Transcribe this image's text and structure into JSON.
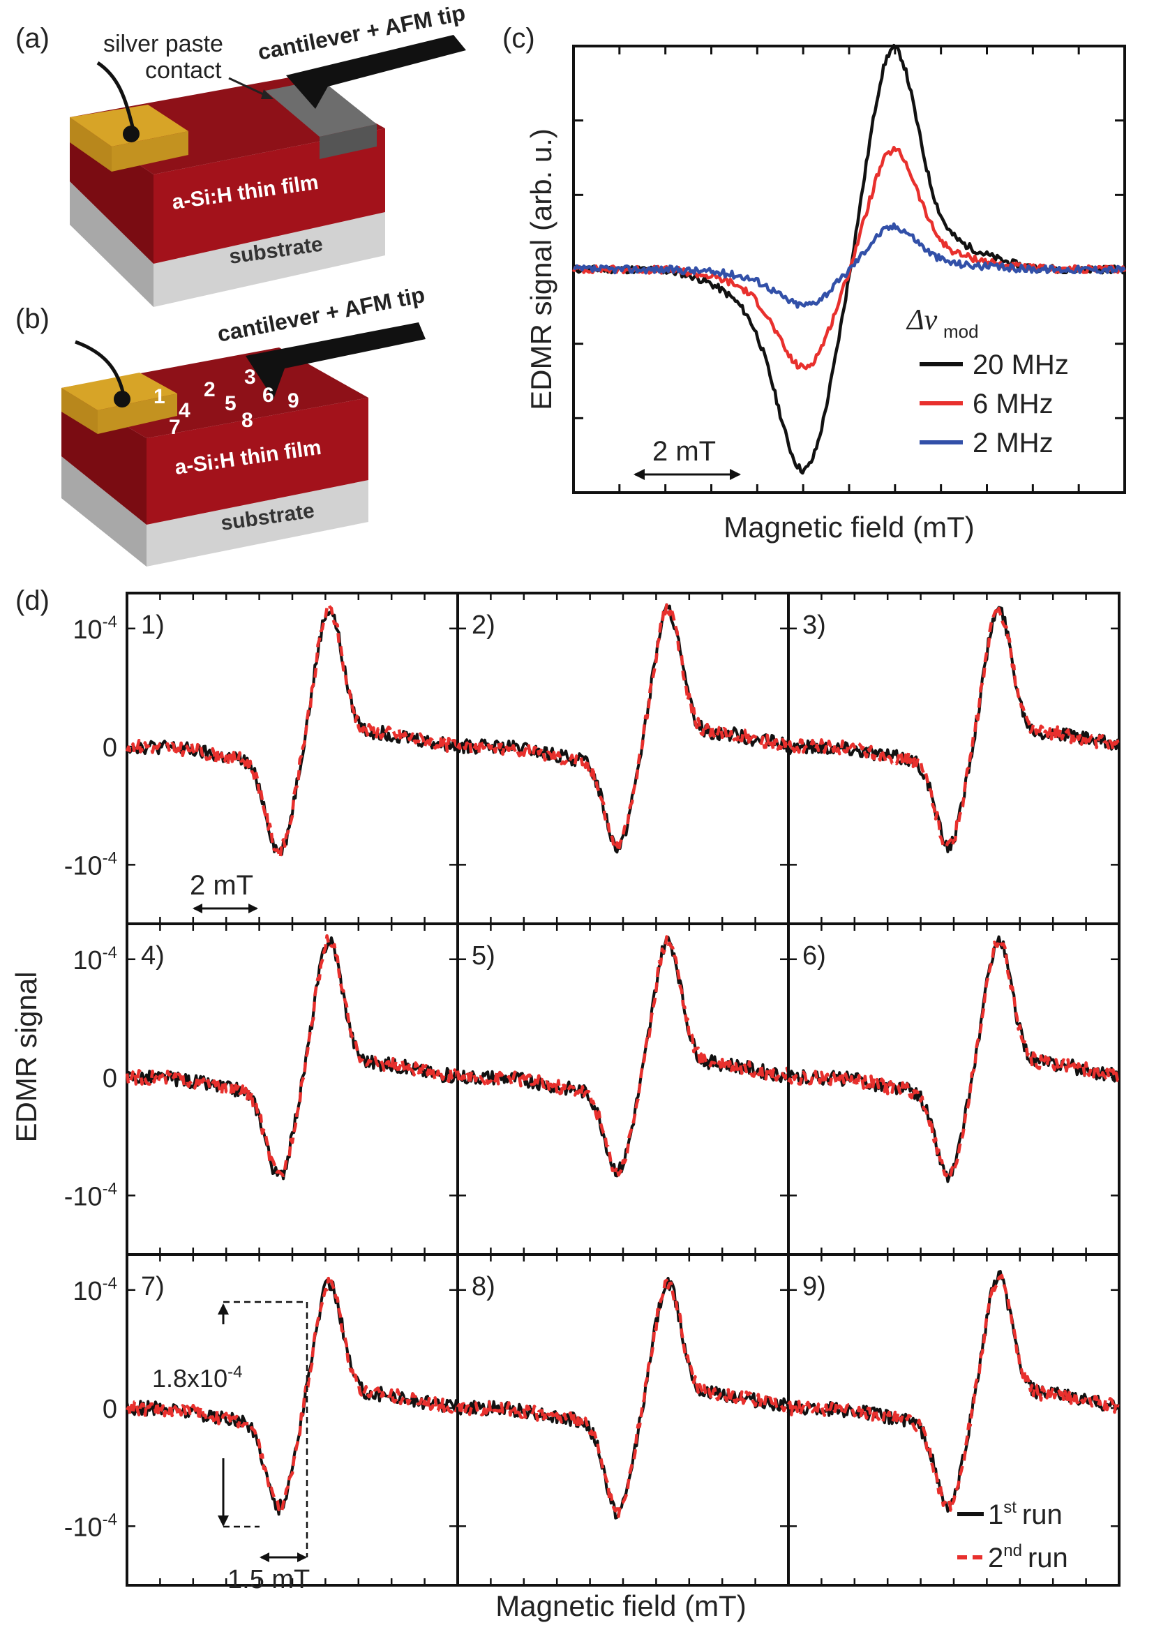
{
  "panels": {
    "a": {
      "label": "(a)",
      "contact_label_line1": "silver paste",
      "contact_label_line2": "contact",
      "tip_label": "cantilever + AFM tip",
      "film_label": "a-Si:H thin film",
      "substrate_label": "substrate"
    },
    "b": {
      "label": "(b)",
      "tip_label": "cantilever + AFM tip",
      "film_label": "a-Si:H thin film",
      "substrate_label": "substrate",
      "spot_numbers": [
        "1",
        "2",
        "3",
        "4",
        "5",
        "6",
        "7",
        "8",
        "9"
      ]
    },
    "c": {
      "label": "(c)",
      "legend_title": "Δν",
      "legend_title_sub": "mod",
      "scale_bar_label": "2 mT"
    },
    "d": {
      "label": "(d)",
      "scale_bar_label": "2 mT",
      "annot_amplitude": "1.8x10",
      "annot_amplitude_exp": "-4",
      "annot_width": "1.5 mT",
      "legend_first_base": "1",
      "legend_first_sup": "st",
      "legend_first_text": "run",
      "legend_second_base": "2",
      "legend_second_sup": "nd",
      "legend_second_text": "run"
    }
  },
  "colors": {
    "film_red": "#a3121b",
    "film_dark": "#7a0c12",
    "film_top": "#8e1118",
    "gold": "#d7a427",
    "gold_side": "#b8871c",
    "gray_contact": "#6d6d6d",
    "substrate": "#d2d2d2",
    "substrate_side": "#a8a8a8",
    "black": "#111111",
    "red": "#e8302d",
    "blue": "#3250a8"
  },
  "chart_data": [
    {
      "type": "line",
      "panel": "c",
      "title": "",
      "xlabel": "Magnetic field (mT)",
      "ylabel": "EDMR signal (arb. u.)",
      "xlim": [
        -6.3,
        6.3
      ],
      "ylim": [
        -2.75,
        2.75
      ],
      "tick_labels_shown": false,
      "series": [
        {
          "name": "20 MHz",
          "color": "#111111",
          "amplitude_pos": 2.6,
          "amplitude_neg": -2.25
        },
        {
          "name": "6 MHz",
          "color": "#e8302d",
          "amplitude_pos": 1.4,
          "amplitude_neg": -1.1
        },
        {
          "name": "2 MHz",
          "color": "#3250a8",
          "amplitude_pos": 0.5,
          "amplitude_neg": -0.4
        }
      ],
      "legend": {
        "title": "Δν mod",
        "placement": "bottom-right"
      }
    },
    {
      "type": "line",
      "panel": "d",
      "xlabel": "Magnetic field (mT)",
      "ylabel": "EDMR signal",
      "ylim": [
        -0.00015,
        0.00013
      ],
      "y_ticks": [
        {
          "value": 0.0001,
          "base": "10",
          "exp": "-4"
        },
        {
          "value": 0,
          "base": "0",
          "exp": ""
        },
        {
          "value": -0.0001,
          "base": "-10",
          "exp": "-4"
        }
      ],
      "series_names": [
        "1st run",
        "2nd run"
      ],
      "subplots": [
        {
          "label": "1)",
          "peak": 0.00011,
          "trough": -8.5e-05
        },
        {
          "label": "2)",
          "peak": 0.00011,
          "trough": -8e-05
        },
        {
          "label": "3)",
          "peak": 0.00011,
          "trough": -8e-05
        },
        {
          "label": "4)",
          "peak": 0.00011,
          "trough": -8e-05
        },
        {
          "label": "5)",
          "peak": 0.00011,
          "trough": -7.5e-05
        },
        {
          "label": "6)",
          "peak": 0.00011,
          "trough": -8e-05
        },
        {
          "label": "7)",
          "peak": 0.0001,
          "trough": -8e-05
        },
        {
          "label": "8)",
          "peak": 0.0001,
          "trough": -8.5e-05
        },
        {
          "label": "9)",
          "peak": 0.000105,
          "trough": -8e-05
        }
      ]
    }
  ]
}
